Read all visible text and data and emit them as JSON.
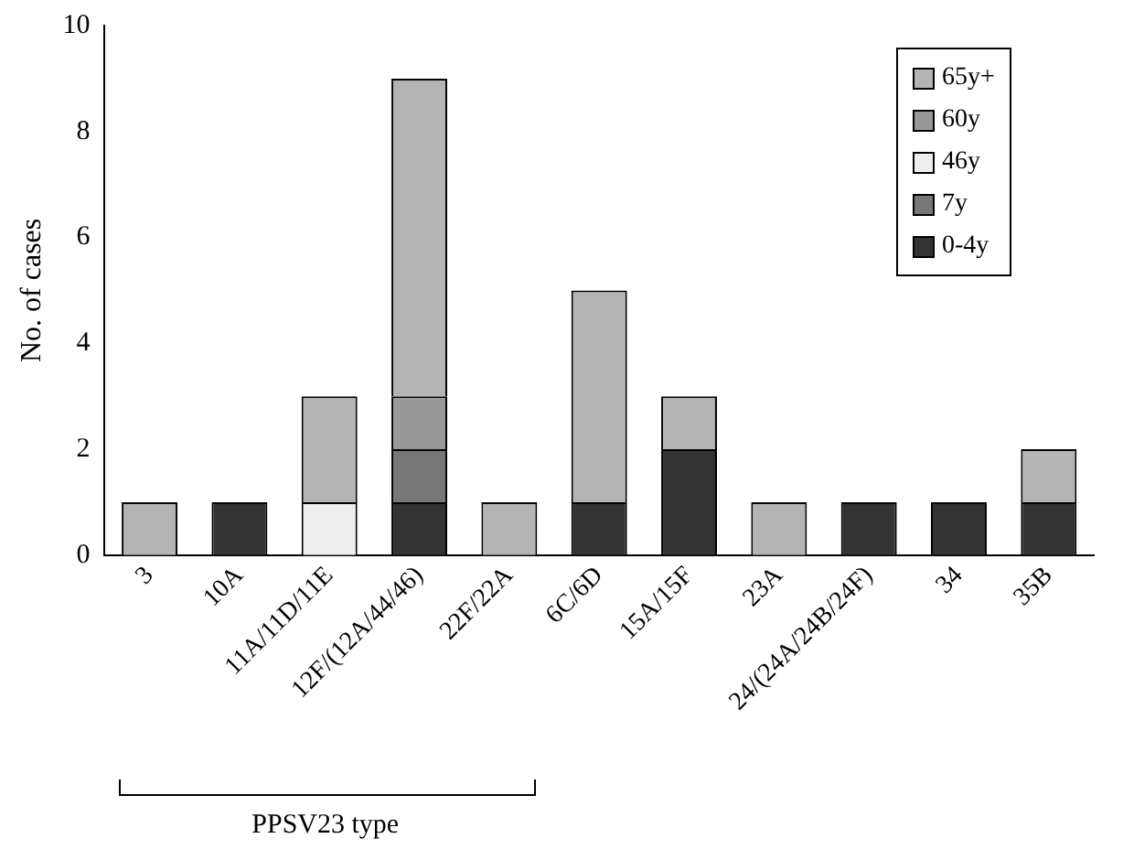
{
  "chart_data": {
    "type": "bar",
    "stacked": true,
    "categories": [
      "3",
      "10A",
      "11A/11D/11E",
      "12F/(12A/44/46)",
      "22F/22A",
      "6C/6D",
      "15A/15F",
      "23A",
      "24/(24A/24B/24F)",
      "34",
      "35B"
    ],
    "series": [
      {
        "name": "0-4y",
        "color": "#333333",
        "values": [
          0,
          1,
          0,
          1,
          0,
          1,
          2,
          0,
          1,
          1,
          1
        ]
      },
      {
        "name": "7y",
        "color": "#777777",
        "values": [
          0,
          0,
          0,
          1,
          0,
          0,
          0,
          0,
          0,
          0,
          0
        ]
      },
      {
        "name": "46y",
        "color": "#eeeeee",
        "values": [
          0,
          0,
          1,
          0,
          0,
          0,
          0,
          0,
          0,
          0,
          0
        ]
      },
      {
        "name": "60y",
        "color": "#999999",
        "values": [
          0,
          0,
          0,
          1,
          0,
          0,
          0,
          0,
          0,
          0,
          0
        ]
      },
      {
        "name": "65y+",
        "color": "#b4b4b4",
        "values": [
          1,
          0,
          2,
          6,
          1,
          4,
          1,
          1,
          0,
          0,
          1
        ]
      }
    ],
    "ylabel": "No. of cases",
    "ylim": [
      0,
      10
    ],
    "yticks": [
      0,
      2,
      4,
      6,
      8,
      10
    ],
    "grid": false,
    "legend": "top right",
    "annotations": [
      "PPSV23 type"
    ]
  }
}
